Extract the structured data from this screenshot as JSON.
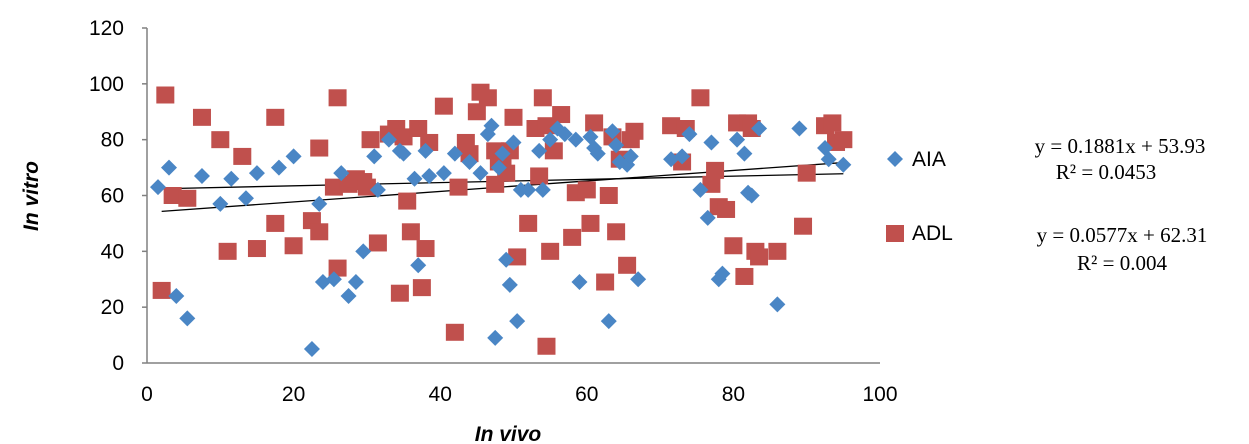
{
  "chart_data": {
    "type": "scatter",
    "xlabel": "In vivo",
    "ylabel": "In vitro",
    "xlim": [
      0,
      100
    ],
    "ylim": [
      0,
      120
    ],
    "x_ticks": [
      0,
      20,
      40,
      60,
      80,
      100
    ],
    "y_ticks": [
      0,
      20,
      40,
      60,
      80,
      100,
      120
    ],
    "grid": false,
    "legend_position": "right",
    "series": [
      {
        "name": "AIA",
        "marker": "diamond",
        "color": "#4a86c5",
        "trendline": {
          "slope": 0.1881,
          "intercept": 53.93
        },
        "equation": "y = 0.1881x + 53.93",
        "r_squared": "R² = 0.0453",
        "points": [
          [
            1.5,
            63
          ],
          [
            3,
            70
          ],
          [
            4,
            24
          ],
          [
            5.5,
            16
          ],
          [
            7.5,
            67
          ],
          [
            10,
            57
          ],
          [
            11.5,
            66
          ],
          [
            13.5,
            59
          ],
          [
            15,
            68
          ],
          [
            18,
            70
          ],
          [
            20,
            74
          ],
          [
            22.5,
            5
          ],
          [
            23.5,
            57
          ],
          [
            24,
            29
          ],
          [
            25.5,
            30
          ],
          [
            26.5,
            68
          ],
          [
            27.5,
            24
          ],
          [
            28.5,
            29
          ],
          [
            29.5,
            40
          ],
          [
            31,
            74
          ],
          [
            31.5,
            62
          ],
          [
            33,
            80
          ],
          [
            34.5,
            76
          ],
          [
            35,
            75
          ],
          [
            36.5,
            66
          ],
          [
            37,
            35
          ],
          [
            38,
            76
          ],
          [
            38.5,
            67
          ],
          [
            40.5,
            68
          ],
          [
            42,
            75
          ],
          [
            44,
            72
          ],
          [
            45.5,
            68
          ],
          [
            46.5,
            82
          ],
          [
            47,
            85
          ],
          [
            47.5,
            9
          ],
          [
            48,
            70
          ],
          [
            48.5,
            75
          ],
          [
            49,
            37
          ],
          [
            49.5,
            28
          ],
          [
            50,
            79
          ],
          [
            50.5,
            15
          ],
          [
            51,
            62
          ],
          [
            52,
            62
          ],
          [
            53.5,
            76
          ],
          [
            54,
            62
          ],
          [
            55,
            80
          ],
          [
            56,
            84
          ],
          [
            57,
            82
          ],
          [
            58.5,
            80
          ],
          [
            59,
            29
          ],
          [
            60.5,
            81
          ],
          [
            61,
            77
          ],
          [
            61.5,
            75
          ],
          [
            63,
            15
          ],
          [
            63.5,
            83
          ],
          [
            64,
            78
          ],
          [
            64.5,
            72
          ],
          [
            65.5,
            71
          ],
          [
            66,
            74
          ],
          [
            67,
            30
          ],
          [
            71.5,
            73
          ],
          [
            73,
            74
          ],
          [
            74,
            82
          ],
          [
            75.5,
            62
          ],
          [
            76.5,
            52
          ],
          [
            77,
            79
          ],
          [
            78,
            30
          ],
          [
            78.5,
            32
          ],
          [
            80.5,
            80
          ],
          [
            81.5,
            75
          ],
          [
            82,
            61
          ],
          [
            82.5,
            60
          ],
          [
            83.5,
            84
          ],
          [
            86,
            21
          ],
          [
            89,
            84
          ],
          [
            92.5,
            77
          ],
          [
            93,
            73
          ],
          [
            95,
            71
          ]
        ]
      },
      {
        "name": "ADL",
        "marker": "square",
        "color": "#c0504d",
        "trendline": {
          "slope": 0.0577,
          "intercept": 62.31
        },
        "equation": "y = 0.0577x + 62.31",
        "r_squared": "R² = 0.004",
        "points": [
          [
            2,
            26
          ],
          [
            2.5,
            96
          ],
          [
            3.5,
            60
          ],
          [
            5.5,
            59
          ],
          [
            7.5,
            88
          ],
          [
            10,
            80
          ],
          [
            11,
            40
          ],
          [
            13,
            74
          ],
          [
            15,
            41
          ],
          [
            17.5,
            50
          ],
          [
            17.5,
            88
          ],
          [
            20,
            42
          ],
          [
            22.5,
            51
          ],
          [
            23.5,
            77
          ],
          [
            23.5,
            47
          ],
          [
            25.5,
            63
          ],
          [
            26,
            34
          ],
          [
            26,
            95
          ],
          [
            27.5,
            64
          ],
          [
            28.5,
            66
          ],
          [
            29.5,
            65
          ],
          [
            30,
            63
          ],
          [
            30.5,
            80
          ],
          [
            31.5,
            43
          ],
          [
            33,
            82
          ],
          [
            34,
            84
          ],
          [
            34.5,
            25
          ],
          [
            35,
            81
          ],
          [
            35.5,
            58
          ],
          [
            36,
            47
          ],
          [
            37,
            84
          ],
          [
            37.5,
            27
          ],
          [
            38,
            41
          ],
          [
            38.5,
            79
          ],
          [
            40.5,
            92
          ],
          [
            42,
            11
          ],
          [
            42.5,
            63
          ],
          [
            43.5,
            79
          ],
          [
            44,
            75
          ],
          [
            45,
            90
          ],
          [
            45.5,
            97
          ],
          [
            46.5,
            95
          ],
          [
            47.5,
            76
          ],
          [
            47.5,
            64
          ],
          [
            48,
            72
          ],
          [
            48.5,
            72
          ],
          [
            49,
            68
          ],
          [
            49.5,
            76
          ],
          [
            50,
            88
          ],
          [
            50.5,
            38
          ],
          [
            52,
            50
          ],
          [
            53,
            84
          ],
          [
            53.5,
            67
          ],
          [
            54,
            95
          ],
          [
            54.5,
            6
          ],
          [
            54.5,
            85
          ],
          [
            55,
            40
          ],
          [
            55.5,
            76
          ],
          [
            56.5,
            89
          ],
          [
            58,
            45
          ],
          [
            58.5,
            61
          ],
          [
            60,
            62
          ],
          [
            60.5,
            50
          ],
          [
            61,
            86
          ],
          [
            62.5,
            29
          ],
          [
            63,
            60
          ],
          [
            63.5,
            81
          ],
          [
            64,
            47
          ],
          [
            64.5,
            73
          ],
          [
            65.5,
            35
          ],
          [
            66,
            80
          ],
          [
            66.5,
            83
          ],
          [
            71.5,
            85
          ],
          [
            73,
            72
          ],
          [
            73.5,
            84
          ],
          [
            75.5,
            95
          ],
          [
            77,
            64
          ],
          [
            77.5,
            69
          ],
          [
            78,
            56
          ],
          [
            79,
            55
          ],
          [
            80,
            42
          ],
          [
            80.5,
            86
          ],
          [
            81.5,
            31
          ],
          [
            82,
            86
          ],
          [
            82.5,
            84
          ],
          [
            83,
            40
          ],
          [
            83.5,
            38
          ],
          [
            86,
            40
          ],
          [
            89.5,
            49
          ],
          [
            90,
            68
          ],
          [
            92.5,
            85
          ],
          [
            93.5,
            86
          ],
          [
            94,
            79
          ],
          [
            95,
            80
          ]
        ]
      }
    ]
  }
}
